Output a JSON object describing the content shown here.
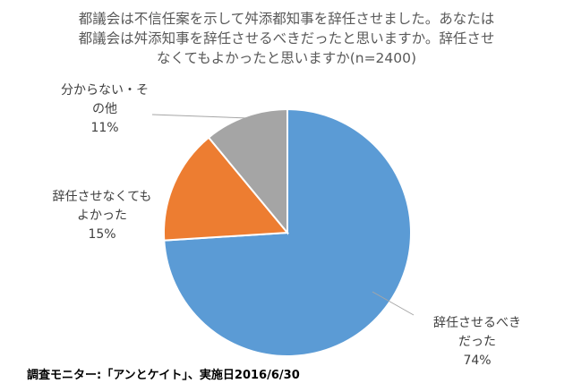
{
  "chart_data": {
    "type": "pie",
    "title_lines": [
      "都議会は不信任案を示して舛添都知事を辞任させました。あなたは",
      "都議会は舛添知事を辞任させるべきだったと思いますか。辞任させ",
      "なくてもよかったと思いますか(n=2400)"
    ],
    "slices": [
      {
        "label_lines": [
          "辞任させるべき",
          "だった"
        ],
        "percent_label": "74%",
        "value": 74,
        "color": "#5B9BD5"
      },
      {
        "label_lines": [
          "辞任させなくても",
          "よかった"
        ],
        "percent_label": "15%",
        "value": 15,
        "color": "#ED7D31"
      },
      {
        "label_lines": [
          "分からない・そ",
          "の他"
        ],
        "percent_label": "11%",
        "value": 11,
        "color": "#A5A5A5"
      }
    ]
  },
  "footer": "調査モニター:「アンとケイト」、実施日2016/6/30"
}
